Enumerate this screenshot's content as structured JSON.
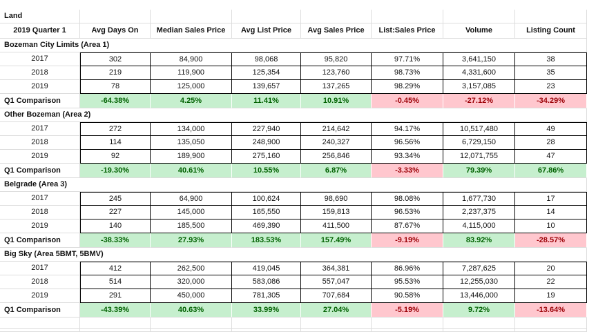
{
  "title": "Land",
  "header": [
    "2019 Quarter 1",
    "Avg Days On",
    "Median Sales Price",
    "Avg List Price",
    "Avg Sales Price",
    "List:Sales Price",
    "Volume",
    "Listing Count"
  ],
  "colors": {
    "positive_fill": "#c6efce",
    "positive_text": "#006100",
    "negative_fill": "#ffc7ce",
    "negative_text": "#9c0006"
  },
  "sections": [
    {
      "name": "Bozeman City Limits (Area 1)",
      "rows": [
        [
          "2017",
          "302",
          "84,900",
          "98,068",
          "95,820",
          "97.71%",
          "3,641,150",
          "38"
        ],
        [
          "2018",
          "219",
          "119,900",
          "125,354",
          "123,760",
          "98.73%",
          "4,331,600",
          "35"
        ],
        [
          "2019",
          "78",
          "125,000",
          "139,657",
          "137,265",
          "98.29%",
          "3,157,085",
          "23"
        ]
      ],
      "comparison": [
        "Q1 Comparison",
        "-64.38%",
        "4.25%",
        "11.41%",
        "10.91%",
        "-0.45%",
        "-27.12%",
        "-34.29%"
      ],
      "comparison_sentiment": [
        "",
        "pos",
        "pos",
        "pos",
        "pos",
        "neg",
        "neg",
        "neg"
      ]
    },
    {
      "name": "Other Bozeman (Area 2)",
      "rows": [
        [
          "2017",
          "272",
          "134,000",
          "227,940",
          "214,642",
          "94.17%",
          "10,517,480",
          "49"
        ],
        [
          "2018",
          "114",
          "135,050",
          "248,900",
          "240,327",
          "96.56%",
          "6,729,150",
          "28"
        ],
        [
          "2019",
          "92",
          "189,900",
          "275,160",
          "256,846",
          "93.34%",
          "12,071,755",
          "47"
        ]
      ],
      "comparison": [
        "Q1 Comparison",
        "-19.30%",
        "40.61%",
        "10.55%",
        "6.87%",
        "-3.33%",
        "79.39%",
        "67.86%"
      ],
      "comparison_sentiment": [
        "",
        "pos",
        "pos",
        "pos",
        "pos",
        "neg",
        "pos",
        "pos"
      ]
    },
    {
      "name": "Belgrade (Area 3)",
      "rows": [
        [
          "2017",
          "245",
          "64,900",
          "100,624",
          "98,690",
          "98.08%",
          "1,677,730",
          "17"
        ],
        [
          "2018",
          "227",
          "145,000",
          "165,550",
          "159,813",
          "96.53%",
          "2,237,375",
          "14"
        ],
        [
          "2019",
          "140",
          "185,500",
          "469,390",
          "411,500",
          "87.67%",
          "4,115,000",
          "10"
        ]
      ],
      "comparison": [
        "Q1 Comparison",
        "-38.33%",
        "27.93%",
        "183.53%",
        "157.49%",
        "-9.19%",
        "83.92%",
        "-28.57%"
      ],
      "comparison_sentiment": [
        "",
        "pos",
        "pos",
        "pos",
        "pos",
        "neg",
        "pos",
        "neg"
      ]
    },
    {
      "name": "Big Sky (Area 5BMT, 5BMV)",
      "rows": [
        [
          "2017",
          "412",
          "262,500",
          "419,045",
          "364,381",
          "86.96%",
          "7,287,625",
          "20"
        ],
        [
          "2018",
          "514",
          "320,000",
          "583,086",
          "557,047",
          "95.53%",
          "12,255,030",
          "22"
        ],
        [
          "2019",
          "291",
          "450,000",
          "781,305",
          "707,684",
          "90.58%",
          "13,446,000",
          "19"
        ]
      ],
      "comparison": [
        "Q1 Comparison",
        "-43.39%",
        "40.63%",
        "33.99%",
        "27.04%",
        "-5.19%",
        "9.72%",
        "-13.64%"
      ],
      "comparison_sentiment": [
        "",
        "pos",
        "pos",
        "pos",
        "pos",
        "neg",
        "pos",
        "neg"
      ]
    }
  ]
}
